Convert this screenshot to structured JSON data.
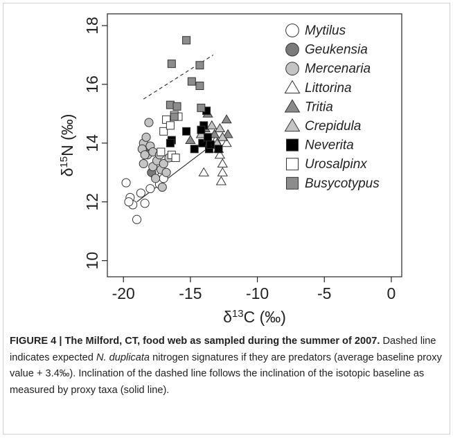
{
  "chart_data": {
    "type": "scatter",
    "xlabel": [
      "δ",
      "13",
      "C (‰)"
    ],
    "ylabel": [
      "δ",
      "15",
      "N (‰)"
    ],
    "xlim": [
      -21.2,
      0.78
    ],
    "ylim": [
      9.45,
      18.4
    ],
    "xticks": [
      -20,
      -15,
      -10,
      -5,
      0
    ],
    "yticks": [
      10,
      12,
      14,
      16,
      18
    ],
    "legend": "upper right",
    "series": [
      {
        "name": "Mytilus",
        "marker": "circle",
        "color": "#ffffff",
        "x": [
          -19.8,
          -19.5,
          -19.3,
          -19.6,
          -19.0,
          -18.7,
          -18.4,
          -18.0,
          -17.3,
          -17.0,
          -17.7
        ],
        "values": [
          12.65,
          12.15,
          11.9,
          12.0,
          11.4,
          12.3,
          11.95,
          12.45,
          12.6,
          12.8,
          13.0
        ]
      },
      {
        "name": "Geukensia",
        "marker": "circle",
        "color": "#7a7a7a",
        "x": [
          -18.4,
          -17.9
        ],
        "values": [
          13.8,
          13.0
        ]
      },
      {
        "name": "Mercenaria",
        "marker": "circle",
        "color": "#c4c4c4",
        "x": [
          -18.5,
          -18.3,
          -18.6,
          -18.2,
          -18.0,
          -18.5,
          -17.8,
          -17.5,
          -17.2,
          -17.8,
          -17.3,
          -17.0,
          -16.6,
          -18.1,
          -18.4,
          -17.6,
          -17.1,
          -16.8
        ],
        "values": [
          14.0,
          14.2,
          13.8,
          13.6,
          13.9,
          13.3,
          13.2,
          13.4,
          13.1,
          13.7,
          13.6,
          13.3,
          13.5,
          14.7,
          13.6,
          12.8,
          12.5,
          13.0
        ]
      },
      {
        "name": "Littorina",
        "marker": "triangle",
        "color": "#ffffff",
        "x": [
          -14.0,
          -12.6,
          -12.7,
          -12.6,
          -12.8,
          -12.3,
          -13.1,
          -12.9
        ],
        "values": [
          13.0,
          13.0,
          12.7,
          13.3,
          13.6,
          14.0,
          14.1,
          13.8
        ]
      },
      {
        "name": "Tritia",
        "marker": "triangle",
        "color": "#8a8a8a",
        "x": [
          -15.0,
          -13.9,
          -12.3,
          -12.2,
          -13.2,
          -13.7
        ],
        "values": [
          14.1,
          14.5,
          14.8,
          14.3,
          14.3,
          15.0
        ]
      },
      {
        "name": "Crepidula",
        "marker": "triangle",
        "color": "#c4c4c4",
        "x": [
          -13.4,
          -12.8,
          -14.2,
          -13.0,
          -12.6
        ],
        "values": [
          14.6,
          14.5,
          14.3,
          14.0,
          14.2
        ]
      },
      {
        "name": "Neverita",
        "marker": "square",
        "color": "#000000",
        "x": [
          -16.4,
          -16.5,
          -15.3,
          -14.7,
          -14.1,
          -13.6,
          -13.5,
          -13.8,
          -14.0,
          -13.7,
          -12.9,
          -14.2
        ],
        "values": [
          14.1,
          14.0,
          14.4,
          13.8,
          14.0,
          13.8,
          13.95,
          15.1,
          14.6,
          14.2,
          13.8,
          14.45
        ]
      },
      {
        "name": "Urosalpinx",
        "marker": "square",
        "color": "#ffffff",
        "x": [
          -17.0,
          -16.8,
          -16.5,
          -16.4,
          -16.1,
          -16.2,
          -15.9,
          -17.2
        ],
        "values": [
          14.4,
          14.8,
          14.6,
          13.6,
          13.5,
          14.95,
          14.9,
          13.7
        ]
      },
      {
        "name": "Busycotypus",
        "marker": "square",
        "color": "#8c8c8c",
        "x": [
          -15.3,
          -16.4,
          -14.9,
          -14.3,
          -14.3,
          -14.2,
          -16.5,
          -16.0,
          -16.2
        ],
        "values": [
          17.5,
          16.7,
          16.1,
          15.95,
          16.65,
          15.2,
          15.3,
          15.25,
          14.9
        ]
      }
    ],
    "lines": [
      {
        "style": "solid",
        "x": [
          -19.0,
          -13.5
        ],
        "values": [
          12.0,
          13.9
        ]
      },
      {
        "style": "dashed",
        "x": [
          -18.5,
          -13.3
        ],
        "values": [
          15.5,
          17.0
        ]
      }
    ]
  },
  "caption": [
    {
      "style": "bold",
      "text": "FIGURE 4 | The Milford, CT, food web as sampled during the summer of 2007."
    },
    {
      "style": "normal",
      "text": " Dashed line indicates expected "
    },
    {
      "style": "italic",
      "text": "N. duplicata"
    },
    {
      "style": "normal",
      "text": " nitrogen signatures if they are predators (average baseline proxy value + 3.4‰). Inclination of the dashed line follows the inclination of the isotopic baseline as measured by proxy taxa (solid line)."
    }
  ]
}
